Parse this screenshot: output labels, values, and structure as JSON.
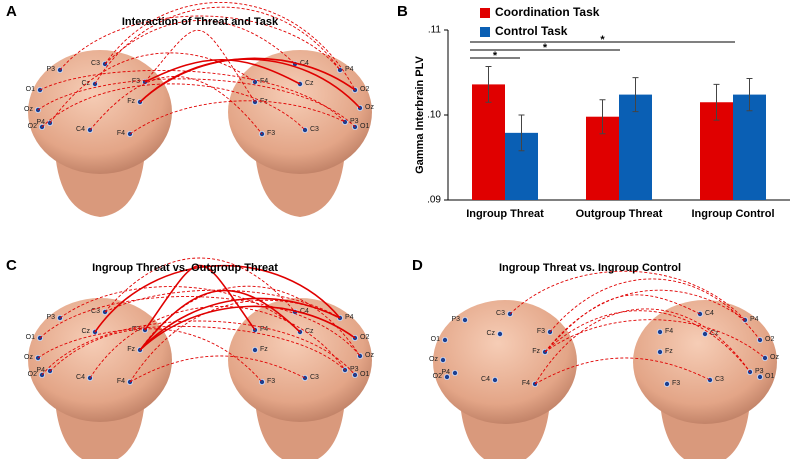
{
  "panel_labels": [
    "A",
    "B",
    "C",
    "D"
  ],
  "diagrams": [
    {
      "title": "Interaction of Threat and Task",
      "heads": [
        [
          "C3",
          "P3",
          "O1",
          "Cz",
          "F3",
          "Fz",
          "Oz",
          "O2",
          "P4",
          "C4",
          "F4"
        ],
        [
          "C4",
          "P4",
          "F4",
          "Cz",
          "O2",
          "Fz",
          "Oz",
          "P3",
          "O1",
          "F3",
          "C3"
        ]
      ]
    },
    {
      "title": "Ingroup Threat vs. Outgroup Threat",
      "heads": [
        [
          "C3",
          "P3",
          "O1",
          "Cz",
          "F3",
          "Fz",
          "Oz",
          "O2",
          "P4",
          "C4",
          "F4"
        ],
        [
          "C4",
          "P4",
          "F4",
          "Cz",
          "O2",
          "Fz",
          "Oz",
          "P3",
          "O1",
          "F3",
          "C3"
        ]
      ]
    },
    {
      "title": "Ingroup Threat vs. Ingroup Control",
      "heads": [
        [
          "C3",
          "P3",
          "O1",
          "Cz",
          "F3",
          "Fz",
          "Oz",
          "O2",
          "P4",
          "C4",
          "F4"
        ],
        [
          "C4",
          "P4",
          "F4",
          "Cz",
          "O2",
          "Fz",
          "Oz",
          "P3",
          "O1",
          "F3",
          "C3"
        ]
      ]
    }
  ],
  "chart_data": {
    "type": "bar",
    "y_label": "Gamma Interbrain PLV",
    "categories": [
      "Ingroup Threat",
      "Outgroup Threat",
      "Ingroup Control"
    ],
    "series": [
      {
        "name": "Coordination Task",
        "color": "#e00000",
        "values": [
          0.1036,
          0.0998,
          0.1015
        ],
        "errors": [
          0.0021,
          0.002,
          0.0021
        ]
      },
      {
        "name": "Control Task",
        "color": "#0a5fb4",
        "values": [
          0.0979,
          0.1024,
          0.1024
        ],
        "errors": [
          0.0021,
          0.002,
          0.0019
        ]
      }
    ],
    "ylim": [
      0.09,
      0.11
    ],
    "yticks": [
      {
        "value": 0.09,
        "label": ".09"
      },
      {
        "value": 0.1,
        "label": ".10"
      },
      {
        "value": 0.11,
        "label": ".11"
      }
    ],
    "annotations": [
      "*",
      "*",
      "*"
    ],
    "legend": "top-right"
  }
}
